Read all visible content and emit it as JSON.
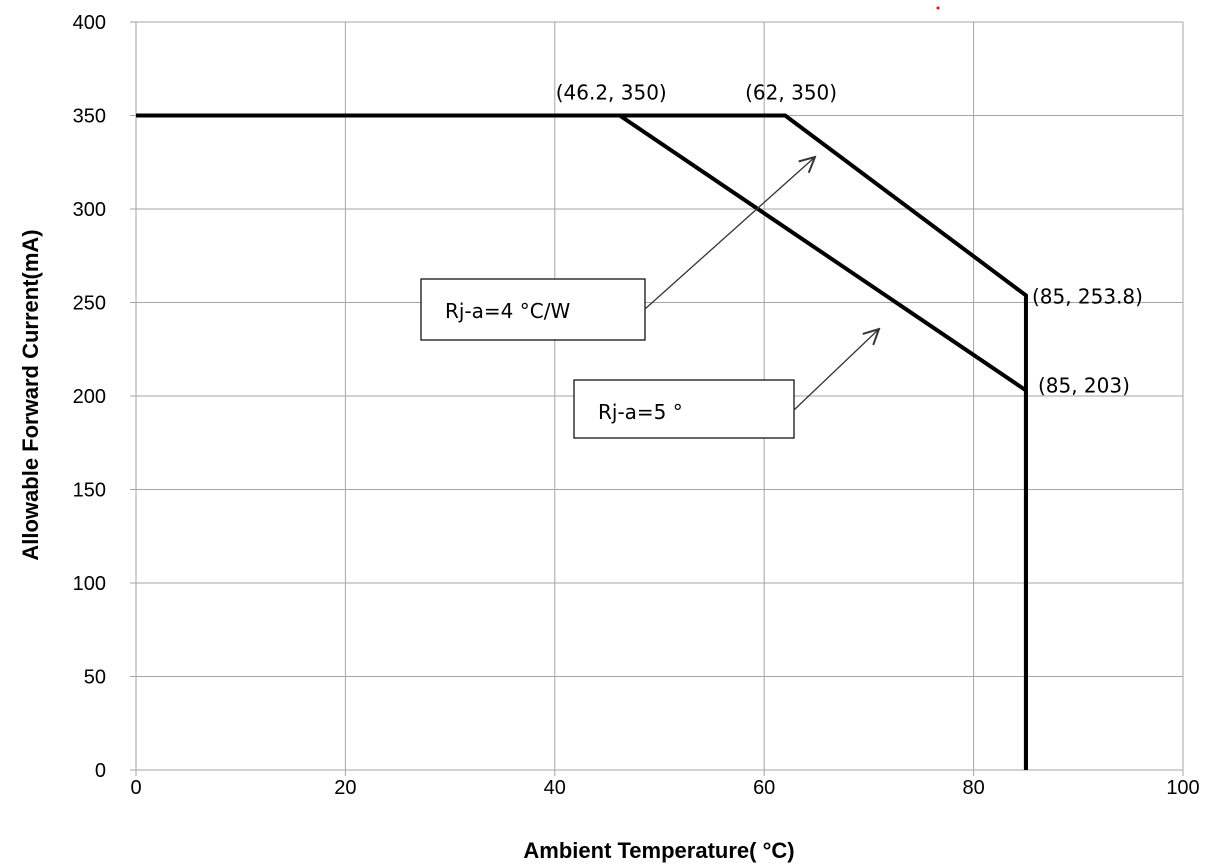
{
  "chart_data": {
    "type": "line",
    "xlabel": "Ambient Temperature(  °C)",
    "ylabel": "Allowable Forward Current(mA)",
    "xlim": [
      0,
      100
    ],
    "ylim": [
      0,
      400
    ],
    "x_ticks": [
      0,
      20,
      40,
      60,
      80,
      100
    ],
    "y_ticks": [
      0,
      50,
      100,
      150,
      200,
      250,
      300,
      350,
      400
    ],
    "grid": true,
    "series": [
      {
        "x": [
          0,
          62,
          85,
          85
        ],
        "y": [
          350,
          350,
          253.8,
          0
        ]
      },
      {
        "x": [
          0,
          46.2,
          85,
          85
        ],
        "y": [
          350,
          350,
          203,
          0
        ]
      }
    ],
    "annotations": [
      {
        "text": "(46.2, 350)",
        "x": 46.2,
        "y": 350
      },
      {
        "text": "(62, 350)",
        "x": 62,
        "y": 350
      },
      {
        "text": "(85, 253.8)",
        "x": 85,
        "y": 253.8
      },
      {
        "text": "(85, 203)",
        "x": 85,
        "y": 203
      }
    ],
    "callouts": [
      {
        "text": "Rj-a=4  °C/W",
        "target_series": 0
      },
      {
        "text": "Rj-a=5  °",
        "target_series": 1
      }
    ]
  },
  "colors": {
    "line": "#000000",
    "grid": "#a6a6a6",
    "background": "#ffffff",
    "stray_dot": "#ff0000"
  }
}
